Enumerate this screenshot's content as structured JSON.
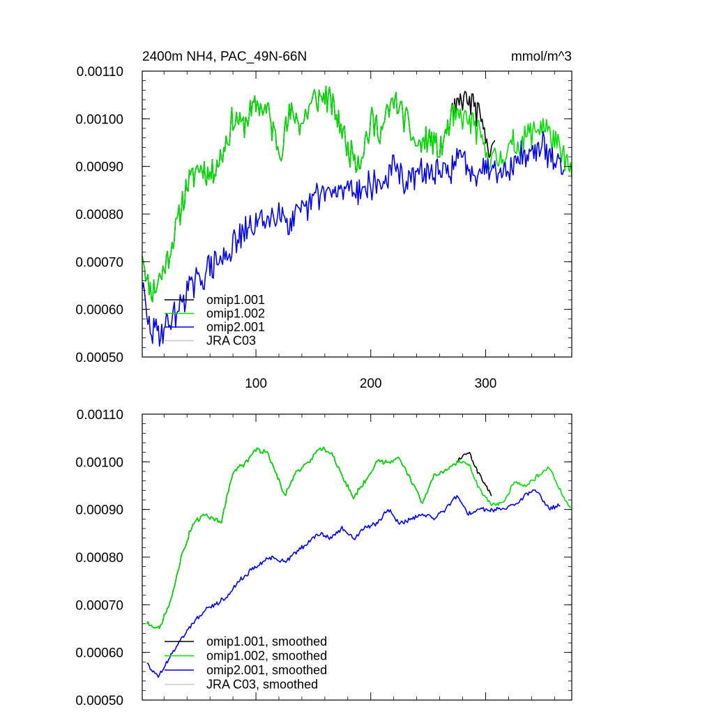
{
  "chart_data": [
    {
      "type": "line",
      "title": "2400m NH4, PAC_49N-66N",
      "units": "mmol/m^3",
      "xlabel": "",
      "ylabel": "",
      "xlim": [
        1,
        375
      ],
      "ylim": [
        0.0005,
        0.0011
      ],
      "xticks": [
        100,
        200,
        300
      ],
      "xtick_labels": [
        "100",
        "200",
        "300"
      ],
      "yticks": [
        0.0005,
        0.0006,
        0.0007,
        0.0008,
        0.0009,
        0.001,
        0.0011
      ],
      "ytick_labels": [
        "0.00050",
        "0.00060",
        "0.00070",
        "0.00080",
        "0.00090",
        "0.00100",
        "0.00110"
      ],
      "legend_position": "bottom-left",
      "series": [
        {
          "name": "omip1.001",
          "color": "#000000",
          "x_end": 308,
          "anchors": [
            [
              1,
              0.00073
            ],
            [
              5,
              0.00066
            ],
            [
              10,
              0.00064
            ],
            [
              20,
              0.00068
            ],
            [
              30,
              0.00077
            ],
            [
              40,
              0.00086
            ],
            [
              50,
              0.0009
            ],
            [
              60,
              0.00088
            ],
            [
              70,
              0.00092
            ],
            [
              80,
              0.001
            ],
            [
              90,
              0.00099
            ],
            [
              100,
              0.00103
            ],
            [
              110,
              0.00102
            ],
            [
              120,
              0.00093
            ],
            [
              130,
              0.00101
            ],
            [
              140,
              0.00099
            ],
            [
              150,
              0.00104
            ],
            [
              160,
              0.00105
            ],
            [
              170,
              0.00101
            ],
            [
              180,
              0.00094
            ],
            [
              190,
              0.00091
            ],
            [
              200,
              0.00099
            ],
            [
              210,
              0.00098
            ],
            [
              220,
              0.00104
            ],
            [
              230,
              0.001
            ],
            [
              240,
              0.00094
            ],
            [
              250,
              0.00096
            ],
            [
              260,
              0.00093
            ],
            [
              270,
              0.001
            ],
            [
              280,
              0.00104
            ],
            [
              290,
              0.00103
            ],
            [
              300,
              0.00096
            ],
            [
              308,
              0.00093
            ]
          ]
        },
        {
          "name": "omip1.002",
          "color": "#00e000",
          "x_end": 375,
          "anchors": [
            [
              1,
              0.00073
            ],
            [
              5,
              0.00066
            ],
            [
              10,
              0.00064
            ],
            [
              20,
              0.00068
            ],
            [
              30,
              0.00077
            ],
            [
              40,
              0.00086
            ],
            [
              50,
              0.0009
            ],
            [
              60,
              0.00088
            ],
            [
              70,
              0.00092
            ],
            [
              80,
              0.001
            ],
            [
              90,
              0.00099
            ],
            [
              100,
              0.00103
            ],
            [
              110,
              0.00102
            ],
            [
              120,
              0.00093
            ],
            [
              130,
              0.00101
            ],
            [
              140,
              0.00099
            ],
            [
              150,
              0.00104
            ],
            [
              160,
              0.00105
            ],
            [
              170,
              0.00101
            ],
            [
              180,
              0.00094
            ],
            [
              190,
              0.00091
            ],
            [
              200,
              0.00099
            ],
            [
              210,
              0.00098
            ],
            [
              220,
              0.00104
            ],
            [
              230,
              0.001
            ],
            [
              240,
              0.00094
            ],
            [
              250,
              0.00096
            ],
            [
              260,
              0.00093
            ],
            [
              270,
              0.001
            ],
            [
              280,
              0.001
            ],
            [
              290,
              0.00099
            ],
            [
              300,
              0.00093
            ],
            [
              310,
              0.00091
            ],
            [
              320,
              0.00094
            ],
            [
              330,
              0.00095
            ],
            [
              340,
              0.00097
            ],
            [
              350,
              0.00099
            ],
            [
              360,
              0.00095
            ],
            [
              370,
              0.00091
            ],
            [
              375,
              0.00088
            ]
          ]
        },
        {
          "name": "omip2.001",
          "color": "#0000ee",
          "x_end": 368,
          "anchors": [
            [
              1,
              0.00066
            ],
            [
              5,
              0.00058
            ],
            [
              10,
              0.00055
            ],
            [
              20,
              0.00056
            ],
            [
              30,
              0.00059
            ],
            [
              40,
              0.00064
            ],
            [
              50,
              0.00066
            ],
            [
              60,
              0.00069
            ],
            [
              70,
              0.0007
            ],
            [
              80,
              0.00073
            ],
            [
              90,
              0.00076
            ],
            [
              100,
              0.00078
            ],
            [
              110,
              0.00079
            ],
            [
              120,
              0.00081
            ],
            [
              130,
              0.00078
            ],
            [
              140,
              0.0008
            ],
            [
              150,
              0.00083
            ],
            [
              160,
              0.00085
            ],
            [
              170,
              0.00084
            ],
            [
              180,
              0.00086
            ],
            [
              190,
              0.00085
            ],
            [
              200,
              0.00086
            ],
            [
              210,
              0.00086
            ],
            [
              220,
              0.0009
            ],
            [
              230,
              0.00087
            ],
            [
              240,
              0.00088
            ],
            [
              250,
              0.00089
            ],
            [
              260,
              0.00088
            ],
            [
              270,
              0.0009
            ],
            [
              280,
              0.00092
            ],
            [
              290,
              0.00089
            ],
            [
              300,
              0.0009
            ],
            [
              310,
              0.0009
            ],
            [
              320,
              0.00089
            ],
            [
              330,
              0.00092
            ],
            [
              340,
              0.00093
            ],
            [
              350,
              0.00094
            ],
            [
              360,
              0.00091
            ],
            [
              368,
              0.00091
            ]
          ]
        },
        {
          "name": "JRA C03",
          "color": "#c8c8c8",
          "x_end": null,
          "anchors": []
        }
      ]
    },
    {
      "type": "line",
      "title": "",
      "xlabel": "",
      "ylabel": "",
      "xlim": [
        1,
        375
      ],
      "ylim": [
        0.0005,
        0.0011
      ],
      "xticks": [
        100,
        200,
        300
      ],
      "xtick_labels": [],
      "yticks": [
        0.0005,
        0.0006,
        0.0007,
        0.0008,
        0.0009,
        0.001,
        0.0011
      ],
      "ytick_labels": [
        "0.00050",
        "0.00060",
        "0.00070",
        "0.00080",
        "0.00090",
        "0.00100",
        "0.00110"
      ],
      "legend_position": "bottom-left",
      "series": [
        {
          "name": "omip1.001, smoothed",
          "color": "#000000",
          "x_end": 305,
          "anchors": [
            [
              5,
              0.000663
            ],
            [
              15,
              0.00065
            ],
            [
              25,
              0.0007
            ],
            [
              35,
              0.0008
            ],
            [
              45,
              0.00087
            ],
            [
              55,
              0.000888
            ],
            [
              70,
              0.000875
            ],
            [
              75,
              0.00093
            ],
            [
              80,
              0.00098
            ],
            [
              90,
              0.000995
            ],
            [
              100,
              0.001025
            ],
            [
              110,
              0.00102
            ],
            [
              120,
              0.00096
            ],
            [
              125,
              0.00093
            ],
            [
              135,
              0.00098
            ],
            [
              145,
              0.000995
            ],
            [
              155,
              0.00103
            ],
            [
              165,
              0.00102
            ],
            [
              175,
              0.00097
            ],
            [
              185,
              0.000925
            ],
            [
              195,
              0.00096
            ],
            [
              205,
              0.001
            ],
            [
              215,
              0.001
            ],
            [
              225,
              0.00101
            ],
            [
              235,
              0.00096
            ],
            [
              245,
              0.000915
            ],
            [
              255,
              0.00097
            ],
            [
              265,
              0.00098
            ],
            [
              275,
              0.001
            ],
            [
              285,
              0.00102
            ],
            [
              295,
              0.00097
            ],
            [
              305,
              0.00093
            ]
          ]
        },
        {
          "name": "omip1.002, smoothed",
          "color": "#00e000",
          "x_end": 374,
          "anchors": [
            [
              5,
              0.000663
            ],
            [
              15,
              0.00065
            ],
            [
              25,
              0.0007
            ],
            [
              35,
              0.0008
            ],
            [
              45,
              0.00087
            ],
            [
              55,
              0.000888
            ],
            [
              70,
              0.000875
            ],
            [
              75,
              0.00093
            ],
            [
              80,
              0.00098
            ],
            [
              90,
              0.000995
            ],
            [
              100,
              0.001025
            ],
            [
              110,
              0.00102
            ],
            [
              120,
              0.00096
            ],
            [
              125,
              0.00093
            ],
            [
              135,
              0.00098
            ],
            [
              145,
              0.000995
            ],
            [
              155,
              0.00103
            ],
            [
              165,
              0.00102
            ],
            [
              175,
              0.00097
            ],
            [
              185,
              0.000925
            ],
            [
              195,
              0.00096
            ],
            [
              205,
              0.001
            ],
            [
              215,
              0.001
            ],
            [
              225,
              0.00101
            ],
            [
              235,
              0.00096
            ],
            [
              245,
              0.000915
            ],
            [
              255,
              0.00097
            ],
            [
              265,
              0.00098
            ],
            [
              275,
              0.001
            ],
            [
              285,
              0.000995
            ],
            [
              295,
              0.00094
            ],
            [
              305,
              0.00091
            ],
            [
              315,
              0.00091
            ],
            [
              325,
              0.00096
            ],
            [
              335,
              0.00095
            ],
            [
              345,
              0.00097
            ],
            [
              355,
              0.00099
            ],
            [
              365,
              0.00094
            ],
            [
              374,
              0.0009
            ]
          ]
        },
        {
          "name": "omip2.001, smoothed",
          "color": "#0000ee",
          "x_end": 365,
          "anchors": [
            [
              5,
              0.00058
            ],
            [
              10,
              0.00056
            ],
            [
              15,
              0.00055
            ],
            [
              25,
              0.00059
            ],
            [
              35,
              0.00063
            ],
            [
              45,
              0.00066
            ],
            [
              55,
              0.00069
            ],
            [
              65,
              0.0007
            ],
            [
              75,
              0.00072
            ],
            [
              85,
              0.00075
            ],
            [
              95,
              0.00077
            ],
            [
              105,
              0.00079
            ],
            [
              115,
              0.0008
            ],
            [
              125,
              0.00079
            ],
            [
              135,
              0.00081
            ],
            [
              145,
              0.00083
            ],
            [
              155,
              0.00085
            ],
            [
              165,
              0.00084
            ],
            [
              175,
              0.00086
            ],
            [
              185,
              0.00084
            ],
            [
              195,
              0.00086
            ],
            [
              205,
              0.00087
            ],
            [
              215,
              0.0009
            ],
            [
              225,
              0.00087
            ],
            [
              235,
              0.00088
            ],
            [
              245,
              0.00089
            ],
            [
              255,
              0.00088
            ],
            [
              265,
              0.0009
            ],
            [
              275,
              0.00093
            ],
            [
              285,
              0.00089
            ],
            [
              295,
              0.0009
            ],
            [
              305,
              0.0009
            ],
            [
              315,
              0.0009
            ],
            [
              325,
              0.00091
            ],
            [
              335,
              0.00093
            ],
            [
              345,
              0.00094
            ],
            [
              355,
              0.0009
            ],
            [
              365,
              0.00091
            ]
          ]
        },
        {
          "name": "JRA C03, smoothed",
          "color": "#c8c8c8",
          "x_end": null,
          "anchors": []
        }
      ]
    }
  ]
}
